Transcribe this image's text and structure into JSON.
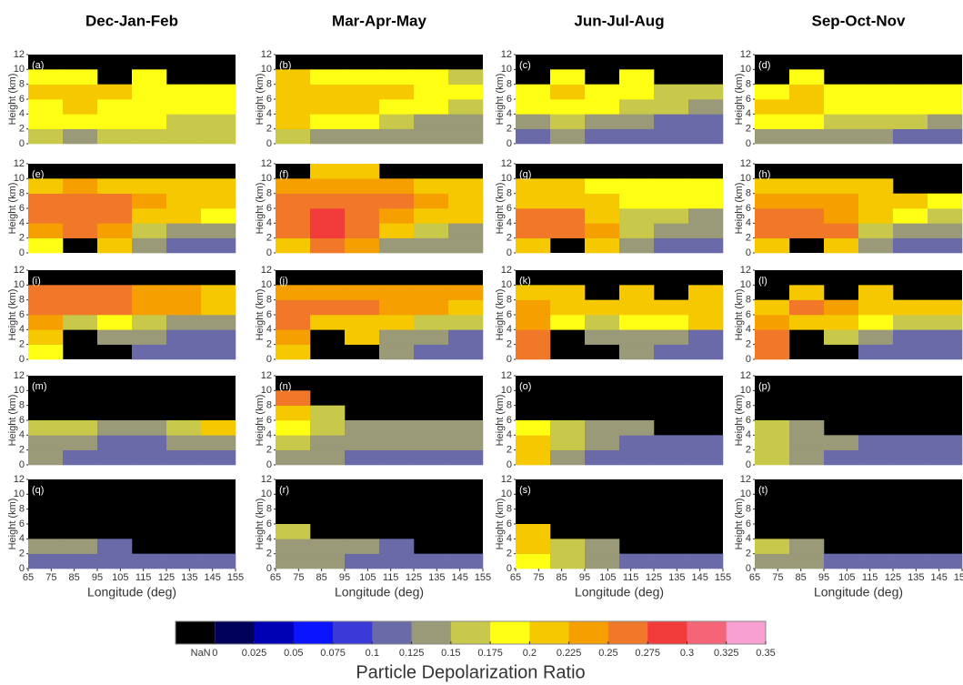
{
  "chart_data": {
    "type": "heatmap",
    "column_titles": [
      "Dec-Jan-Feb",
      "Mar-Apr-May",
      "Jun-Jul-Aug",
      "Sep-Oct-Nov"
    ],
    "x_label": "Longitude (deg)",
    "y_label": "Height (km)",
    "xlim": [
      65,
      155
    ],
    "xticks": [
      65,
      75,
      85,
      95,
      105,
      115,
      125,
      135,
      145,
      155
    ],
    "ylim": [
      0,
      12
    ],
    "yticks": [
      0,
      2,
      4,
      6,
      8,
      10,
      12
    ],
    "xbins": [
      65,
      80,
      95,
      110,
      125,
      140,
      155
    ],
    "ybins": [
      0,
      2,
      4,
      6,
      8,
      10,
      12
    ],
    "panels": [
      {
        "label": "(a)",
        "values": [
          [
            0.16,
            0.15,
            0.16,
            0.16,
            0.16,
            0.16
          ],
          [
            0.19,
            0.19,
            0.18,
            0.18,
            0.17,
            0.17
          ],
          [
            0.19,
            0.2,
            0.19,
            0.19,
            0.19,
            0.18
          ],
          [
            0.2,
            0.21,
            0.2,
            0.19,
            0.19,
            0.18
          ],
          [
            0.19,
            0.19,
            null,
            0.19,
            null,
            null
          ],
          [
            null,
            null,
            null,
            null,
            null,
            null
          ]
        ]
      },
      {
        "label": "(b)",
        "values": [
          [
            0.16,
            0.15,
            0.14,
            0.15,
            0.14,
            0.14
          ],
          [
            0.2,
            0.19,
            0.18,
            0.16,
            0.15,
            0.15
          ],
          [
            0.21,
            0.21,
            0.2,
            0.19,
            0.18,
            0.17
          ],
          [
            0.22,
            0.21,
            0.2,
            0.2,
            0.19,
            0.18
          ],
          [
            0.2,
            0.19,
            0.19,
            0.19,
            0.18,
            0.17
          ],
          [
            null,
            null,
            null,
            null,
            null,
            null
          ]
        ]
      },
      {
        "label": "(c)",
        "values": [
          [
            0.12,
            0.13,
            0.12,
            0.12,
            0.11,
            0.11
          ],
          [
            0.14,
            0.16,
            0.15,
            0.13,
            0.12,
            0.12
          ],
          [
            0.18,
            0.19,
            0.18,
            0.16,
            0.16,
            0.14
          ],
          [
            0.19,
            0.2,
            0.19,
            0.18,
            0.17,
            0.16
          ],
          [
            null,
            0.19,
            null,
            0.18,
            null,
            null
          ],
          [
            null,
            null,
            null,
            null,
            null,
            null
          ]
        ]
      },
      {
        "label": "(d)",
        "values": [
          [
            0.15,
            0.14,
            0.14,
            0.13,
            0.12,
            0.12
          ],
          [
            0.19,
            0.18,
            0.17,
            0.17,
            0.16,
            0.15
          ],
          [
            0.2,
            0.2,
            0.19,
            0.19,
            0.18,
            0.18
          ],
          [
            0.19,
            0.2,
            0.19,
            0.19,
            0.18,
            0.18
          ],
          [
            null,
            0.19,
            null,
            null,
            null,
            null
          ],
          [
            null,
            null,
            null,
            null,
            null,
            null
          ]
        ]
      },
      {
        "label": "(e)",
        "values": [
          [
            0.19,
            null,
            0.2,
            0.14,
            0.12,
            0.12
          ],
          [
            0.24,
            0.25,
            0.23,
            0.16,
            0.14,
            0.13
          ],
          [
            0.26,
            0.27,
            0.25,
            0.22,
            0.2,
            0.19
          ],
          [
            0.26,
            0.27,
            0.25,
            0.24,
            0.22,
            0.22
          ],
          [
            0.22,
            0.23,
            0.22,
            0.22,
            0.21,
            0.21
          ],
          [
            null,
            null,
            null,
            null,
            null,
            null
          ]
        ]
      },
      {
        "label": "(f)",
        "values": [
          [
            0.21,
            0.26,
            0.23,
            0.14,
            0.13,
            0.13
          ],
          [
            0.26,
            0.3,
            0.27,
            0.2,
            0.16,
            0.15
          ],
          [
            0.27,
            0.28,
            0.27,
            0.24,
            0.22,
            0.2
          ],
          [
            0.27,
            0.27,
            0.26,
            0.25,
            0.23,
            0.22
          ],
          [
            0.24,
            0.24,
            0.24,
            0.23,
            0.22,
            0.21
          ],
          [
            null,
            0.22,
            0.21,
            null,
            null,
            null
          ]
        ]
      },
      {
        "label": "(g)",
        "values": [
          [
            0.21,
            null,
            0.22,
            0.15,
            0.12,
            0.12
          ],
          [
            0.26,
            0.27,
            0.24,
            0.16,
            0.14,
            0.13
          ],
          [
            0.25,
            0.25,
            0.22,
            0.17,
            0.16,
            0.15
          ],
          [
            0.22,
            0.22,
            0.2,
            0.19,
            0.19,
            0.18
          ],
          [
            0.2,
            0.2,
            0.19,
            0.19,
            0.19,
            0.18
          ],
          [
            null,
            null,
            null,
            null,
            null,
            null
          ]
        ]
      },
      {
        "label": "(h)",
        "values": [
          [
            0.21,
            null,
            0.22,
            0.14,
            0.12,
            0.12
          ],
          [
            0.27,
            0.27,
            0.25,
            0.17,
            0.14,
            0.13
          ],
          [
            0.26,
            0.26,
            0.24,
            0.21,
            0.18,
            0.16
          ],
          [
            0.24,
            0.24,
            0.23,
            0.21,
            0.2,
            0.19
          ],
          [
            0.2,
            0.21,
            0.2,
            0.2,
            null,
            null
          ],
          [
            null,
            null,
            null,
            null,
            null,
            null
          ]
        ]
      },
      {
        "label": "(i)",
        "values": [
          [
            0.19,
            null,
            null,
            0.12,
            0.12,
            0.12
          ],
          [
            0.21,
            null,
            0.13,
            0.13,
            0.12,
            0.12
          ],
          [
            0.24,
            0.17,
            0.18,
            0.16,
            0.14,
            0.14
          ],
          [
            0.26,
            0.26,
            0.25,
            0.24,
            0.23,
            0.22
          ],
          [
            0.25,
            0.27,
            0.25,
            0.24,
            0.23,
            0.22
          ],
          [
            null,
            null,
            null,
            null,
            null,
            null
          ]
        ]
      },
      {
        "label": "(j)",
        "values": [
          [
            0.22,
            null,
            null,
            0.13,
            0.12,
            0.12
          ],
          [
            0.24,
            null,
            0.2,
            0.15,
            0.13,
            0.12
          ],
          [
            0.25,
            0.22,
            0.22,
            0.2,
            0.17,
            0.17
          ],
          [
            0.25,
            0.25,
            0.25,
            0.24,
            0.23,
            0.22
          ],
          [
            0.24,
            0.24,
            0.24,
            0.24,
            0.23,
            0.23
          ],
          [
            null,
            null,
            null,
            null,
            null,
            null
          ]
        ]
      },
      {
        "label": "(k)",
        "values": [
          [
            0.26,
            null,
            null,
            0.13,
            0.12,
            0.12
          ],
          [
            0.25,
            null,
            0.15,
            0.14,
            0.13,
            0.12
          ],
          [
            0.24,
            0.18,
            0.17,
            0.18,
            0.19,
            0.2
          ],
          [
            0.23,
            0.2,
            0.21,
            0.21,
            0.22,
            0.21
          ],
          [
            0.22,
            0.21,
            null,
            0.22,
            null,
            0.22
          ],
          [
            null,
            null,
            null,
            null,
            null,
            null
          ]
        ]
      },
      {
        "label": "(l)",
        "values": [
          [
            0.25,
            null,
            null,
            0.12,
            0.12,
            0.12
          ],
          [
            0.25,
            null,
            0.16,
            0.13,
            0.12,
            0.12
          ],
          [
            0.24,
            0.22,
            0.21,
            0.18,
            0.17,
            0.16
          ],
          [
            0.22,
            0.25,
            0.24,
            0.22,
            0.21,
            0.2
          ],
          [
            null,
            0.22,
            null,
            0.22,
            null,
            null
          ],
          [
            null,
            null,
            null,
            null,
            null,
            null
          ]
        ]
      },
      {
        "label": "(m)",
        "values": [
          [
            0.13,
            0.12,
            0.11,
            0.11,
            0.12,
            0.12
          ],
          [
            0.14,
            0.13,
            0.12,
            0.12,
            0.13,
            0.14
          ],
          [
            0.16,
            0.17,
            0.15,
            0.15,
            0.16,
            0.2
          ],
          [
            null,
            null,
            null,
            null,
            null,
            null
          ],
          [
            null,
            null,
            null,
            null,
            null,
            null
          ],
          [
            null,
            null,
            null,
            null,
            null,
            null
          ]
        ]
      },
      {
        "label": "(n)",
        "values": [
          [
            0.14,
            0.13,
            0.12,
            0.12,
            0.12,
            0.12
          ],
          [
            0.16,
            0.15,
            0.13,
            0.13,
            0.13,
            0.13
          ],
          [
            0.18,
            0.17,
            0.15,
            0.15,
            0.15,
            0.15
          ],
          [
            0.2,
            0.17,
            null,
            null,
            null,
            null
          ],
          [
            0.26,
            null,
            null,
            null,
            null,
            null
          ],
          [
            null,
            null,
            null,
            null,
            null,
            null
          ]
        ]
      },
      {
        "label": "(o)",
        "values": [
          [
            0.2,
            0.14,
            0.12,
            0.12,
            0.12,
            0.12
          ],
          [
            0.22,
            0.16,
            0.13,
            0.12,
            0.12,
            0.12
          ],
          [
            0.19,
            0.17,
            0.15,
            0.14,
            null,
            null
          ],
          [
            null,
            null,
            null,
            null,
            null,
            null
          ],
          [
            null,
            null,
            null,
            null,
            null,
            null
          ],
          [
            null,
            null,
            null,
            null,
            null,
            null
          ]
        ]
      },
      {
        "label": "(p)",
        "values": [
          [
            0.16,
            0.13,
            0.12,
            0.12,
            0.12,
            0.12
          ],
          [
            0.16,
            0.14,
            0.13,
            0.12,
            0.12,
            0.12
          ],
          [
            0.16,
            0.15,
            null,
            null,
            null,
            null
          ],
          [
            null,
            null,
            null,
            null,
            null,
            null
          ],
          [
            null,
            null,
            null,
            null,
            null,
            null
          ],
          [
            null,
            null,
            null,
            null,
            null,
            null
          ]
        ]
      },
      {
        "label": "(q)",
        "values": [
          [
            0.12,
            0.12,
            0.12,
            0.12,
            0.12,
            0.12
          ],
          [
            0.13,
            0.13,
            0.12,
            null,
            null,
            null
          ],
          [
            null,
            null,
            null,
            null,
            null,
            null
          ],
          [
            null,
            null,
            null,
            null,
            null,
            null
          ],
          [
            null,
            null,
            null,
            null,
            null,
            null
          ],
          [
            null,
            null,
            null,
            null,
            null,
            null
          ]
        ]
      },
      {
        "label": "(r)",
        "values": [
          [
            0.14,
            0.14,
            0.12,
            0.12,
            0.12,
            0.12
          ],
          [
            0.15,
            0.15,
            0.13,
            0.12,
            null,
            null
          ],
          [
            0.16,
            null,
            null,
            null,
            null,
            null
          ],
          [
            null,
            null,
            null,
            null,
            null,
            null
          ],
          [
            null,
            null,
            null,
            null,
            null,
            null
          ],
          [
            null,
            null,
            null,
            null,
            null,
            null
          ]
        ]
      },
      {
        "label": "(s)",
        "values": [
          [
            0.18,
            0.16,
            0.13,
            0.12,
            0.12,
            0.12
          ],
          [
            0.2,
            0.17,
            0.14,
            null,
            null,
            null
          ],
          [
            0.21,
            null,
            null,
            null,
            null,
            null
          ],
          [
            null,
            null,
            null,
            null,
            null,
            null
          ],
          [
            null,
            null,
            null,
            null,
            null,
            null
          ],
          [
            null,
            null,
            null,
            null,
            null,
            null
          ]
        ]
      },
      {
        "label": "(t)",
        "values": [
          [
            0.15,
            0.14,
            0.12,
            0.12,
            0.12,
            0.12
          ],
          [
            0.16,
            0.14,
            null,
            null,
            null,
            null
          ],
          [
            null,
            null,
            null,
            null,
            null,
            null
          ],
          [
            null,
            null,
            null,
            null,
            null,
            null
          ],
          [
            null,
            null,
            null,
            null,
            null,
            null
          ],
          [
            null,
            null,
            null,
            null,
            null,
            null
          ]
        ]
      }
    ],
    "colorbar": {
      "label": "Particle Depolarization Ratio",
      "nan_label": "NaN",
      "nan_color": "#000000",
      "colors": [
        "#00005a",
        "#0000b4",
        "#0a14ff",
        "#3a3ad8",
        "#6a6aa8",
        "#9a9a78",
        "#c8c84a",
        "#ffff14",
        "#f5c800",
        "#f5a000",
        "#f07828",
        "#f23c3c",
        "#f66478",
        "#f8a0d2"
      ],
      "ticks": [
        0,
        0.025,
        0.05,
        0.075,
        0.1,
        0.125,
        0.15,
        0.175,
        0.2,
        0.225,
        0.25,
        0.275,
        0.3,
        0.325,
        0.35
      ]
    }
  }
}
